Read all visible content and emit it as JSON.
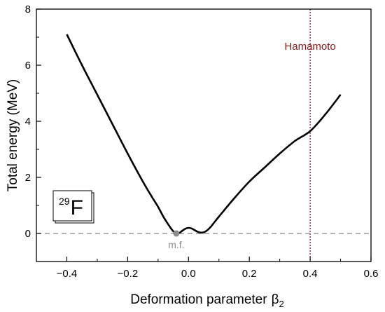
{
  "chart_data": {
    "type": "line",
    "xlabel": "Deformation parameter",
    "xlabel_symbol": "β",
    "xlabel_subscript": "2",
    "ylabel": "Total energy (MeV)",
    "xlim": [
      -0.5,
      0.6
    ],
    "ylim": [
      -1,
      8
    ],
    "xticks": [
      -0.4,
      -0.2,
      0.0,
      0.2,
      0.4,
      0.6
    ],
    "xtick_labels": [
      "−0.4",
      "−0.2",
      "0.0",
      "0.2",
      "0.4",
      "0.6"
    ],
    "yticks": [
      0,
      2,
      4,
      6,
      8
    ],
    "ytick_labels": [
      "0",
      "2",
      "4",
      "6",
      "8"
    ],
    "grid": false,
    "series": [
      {
        "color": "#000000",
        "x": [
          -0.4,
          -0.35,
          -0.3,
          -0.25,
          -0.2,
          -0.15,
          -0.12,
          -0.1,
          -0.08,
          -0.06,
          -0.05,
          -0.04,
          -0.03,
          -0.02,
          -0.01,
          0.0,
          0.01,
          0.02,
          0.03,
          0.04,
          0.05,
          0.06,
          0.07,
          0.08,
          0.1,
          0.15,
          0.2,
          0.25,
          0.3,
          0.35,
          0.4,
          0.45,
          0.5
        ],
        "y": [
          7.1,
          6.0,
          4.95,
          3.9,
          2.85,
          1.85,
          1.3,
          0.95,
          0.55,
          0.22,
          0.08,
          0.0,
          0.02,
          0.1,
          0.17,
          0.2,
          0.18,
          0.12,
          0.06,
          0.03,
          0.04,
          0.1,
          0.2,
          0.33,
          0.6,
          1.25,
          1.85,
          2.35,
          2.85,
          3.3,
          3.65,
          4.25,
          4.95
        ]
      }
    ],
    "reference_lines": {
      "horizontal": {
        "y": 0,
        "color": "#888888",
        "style": "dashed"
      },
      "vertical": {
        "x": 0.4,
        "color": "#8b1a1a",
        "style": "dotted",
        "label": "Hamamoto"
      }
    },
    "marker": {
      "x": -0.04,
      "y": 0,
      "label": "m.f.",
      "color": "#8c8c8c"
    },
    "nucleus": {
      "mass_number": "29",
      "symbol": "F"
    }
  }
}
